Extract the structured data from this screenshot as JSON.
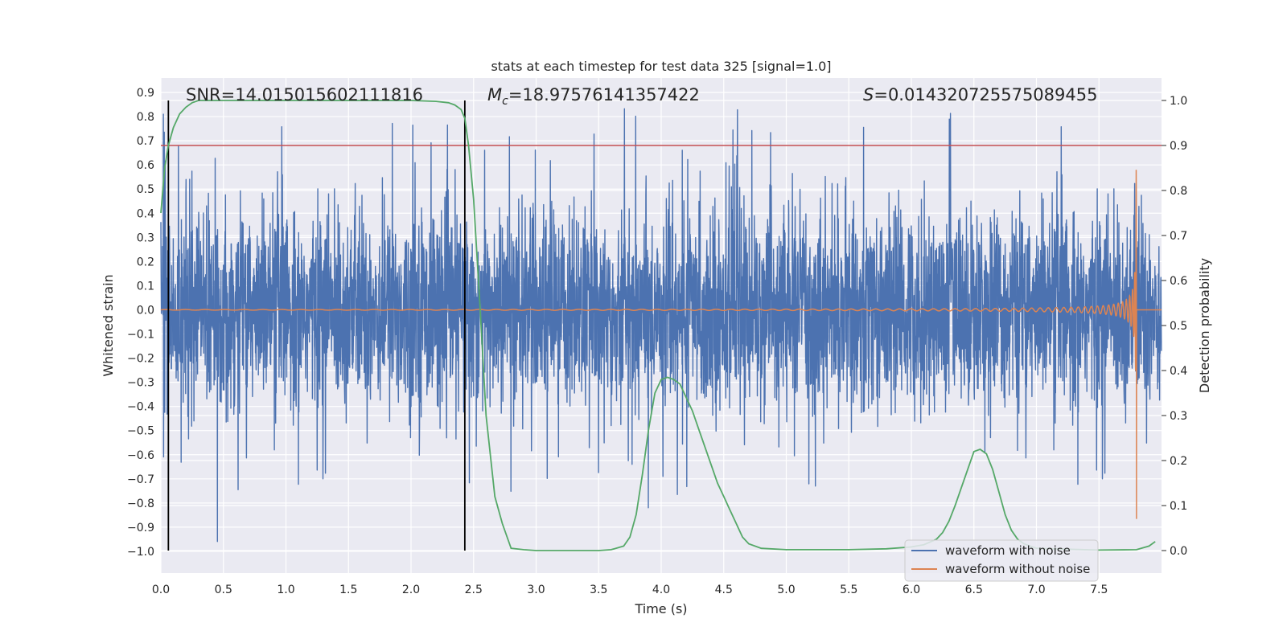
{
  "chart_data": {
    "type": "line",
    "title": "stats at each timestep for test data 325 [signal=1.0]",
    "xlabel": "Time (s)",
    "ylabel_left": "Whitened strain",
    "ylabel_right": "Detection probability",
    "xlim": [
      0.0,
      8.0
    ],
    "ylim_left": [
      -1.09,
      0.96
    ],
    "ylim_right": [
      -0.05,
      1.05
    ],
    "x_ticks": [
      "0.0",
      "0.5",
      "1.0",
      "1.5",
      "2.0",
      "2.5",
      "3.0",
      "3.5",
      "4.0",
      "4.5",
      "5.0",
      "5.5",
      "6.0",
      "6.5",
      "7.0",
      "7.5"
    ],
    "y_left_ticks": [
      "0.9",
      "0.8",
      "0.7",
      "0.6",
      "0.5",
      "0.4",
      "0.3",
      "0.2",
      "0.1",
      "0.0",
      "−0.1",
      "−0.2",
      "−0.3",
      "−0.4",
      "−0.5",
      "−0.6",
      "−0.7",
      "−0.8",
      "−0.9",
      "−1.0"
    ],
    "y_right_ticks": [
      "1.0",
      "0.9",
      "0.8",
      "0.7",
      "0.6",
      "0.5",
      "0.4",
      "0.3",
      "0.2",
      "0.1",
      "0.0"
    ],
    "threshold_probability": 0.9,
    "event_markers_time": [
      0.06,
      2.43
    ],
    "merger_time": 7.8,
    "annotations": {
      "snr": "SNR=14.015015602111816",
      "mc_symbol": "M",
      "mc_sub": "c",
      "mc_value": "=18.97576141357422",
      "s_symbol": "S",
      "s_value": "=0.014320725575089455"
    },
    "legend": [
      "waveform with noise",
      "waveform without noise"
    ],
    "series": [
      {
        "name": "detection probability",
        "axis": "right",
        "x": [
          0.0,
          0.03,
          0.06,
          0.1,
          0.15,
          0.2,
          0.25,
          0.3,
          0.4,
          0.5,
          1.0,
          1.5,
          2.0,
          2.2,
          2.3,
          2.35,
          2.4,
          2.43,
          2.46,
          2.5,
          2.55,
          2.6,
          2.67,
          2.73,
          2.8,
          2.9,
          3.0,
          3.5,
          3.6,
          3.7,
          3.75,
          3.8,
          3.85,
          3.9,
          3.95,
          4.0,
          4.05,
          4.1,
          4.15,
          4.2,
          4.25,
          4.3,
          4.35,
          4.4,
          4.45,
          4.5,
          4.55,
          4.6,
          4.65,
          4.7,
          4.8,
          5.0,
          5.5,
          5.8,
          6.0,
          6.1,
          6.2,
          6.25,
          6.3,
          6.35,
          6.4,
          6.45,
          6.5,
          6.55,
          6.6,
          6.65,
          6.7,
          6.75,
          6.8,
          6.85,
          6.9,
          7.0,
          7.5,
          7.8,
          7.9,
          7.95
        ],
        "values": [
          0.75,
          0.85,
          0.9,
          0.94,
          0.97,
          0.985,
          0.995,
          1.0,
          1.0,
          1.0,
          1.0,
          1.0,
          1.0,
          0.998,
          0.995,
          0.99,
          0.98,
          0.96,
          0.9,
          0.78,
          0.55,
          0.3,
          0.12,
          0.06,
          0.005,
          0.002,
          0.0,
          0.0,
          0.002,
          0.01,
          0.03,
          0.08,
          0.17,
          0.27,
          0.35,
          0.38,
          0.385,
          0.38,
          0.37,
          0.34,
          0.31,
          0.27,
          0.23,
          0.19,
          0.15,
          0.12,
          0.09,
          0.06,
          0.03,
          0.015,
          0.005,
          0.002,
          0.002,
          0.004,
          0.008,
          0.013,
          0.025,
          0.04,
          0.065,
          0.1,
          0.14,
          0.18,
          0.22,
          0.225,
          0.215,
          0.18,
          0.13,
          0.08,
          0.045,
          0.025,
          0.015,
          0.005,
          0.001,
          0.002,
          0.01,
          0.02
        ]
      }
    ]
  },
  "colors": {
    "noise": "#4c72b0",
    "clean": "#dd8452",
    "probability": "#55a868",
    "threshold": "#c44e52",
    "marker": "#000000",
    "plot_bg": "#eaeaf2",
    "grid": "#ffffff"
  }
}
